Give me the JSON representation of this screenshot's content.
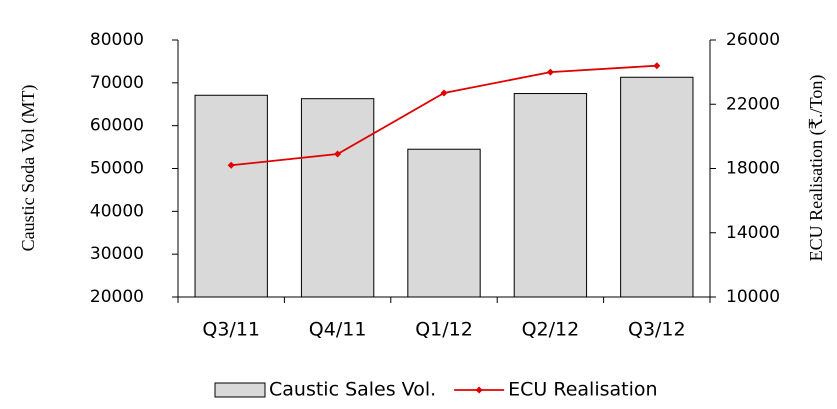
{
  "chart_data": {
    "type": "bar-line",
    "categories": [
      "Q3/11",
      "Q4/11",
      "Q1/12",
      "Q2/12",
      "Q3/12"
    ],
    "series": [
      {
        "name": "Caustic Sales Vol.",
        "type": "bar",
        "color": "#d9d9d9",
        "values": [
          67100,
          66300,
          54500,
          67500,
          71300
        ]
      },
      {
        "name": "ECU Realisation",
        "type": "line",
        "axis": "y2",
        "color": "#e00000",
        "values": [
          18200,
          18900,
          22700,
          24000,
          24400
        ]
      }
    ],
    "ylabel": "Caustic Soda Vol (MT)",
    "y2label": "ECU Realisation (₹./Ton)",
    "ylim": [
      20000,
      80000
    ],
    "yticks": [
      20000,
      30000,
      40000,
      50000,
      60000,
      70000,
      80000
    ],
    "y2lim": [
      10000,
      26000
    ],
    "y2ticks": [
      10000,
      14000,
      18000,
      22000,
      26000
    ],
    "legend": "bottom"
  }
}
